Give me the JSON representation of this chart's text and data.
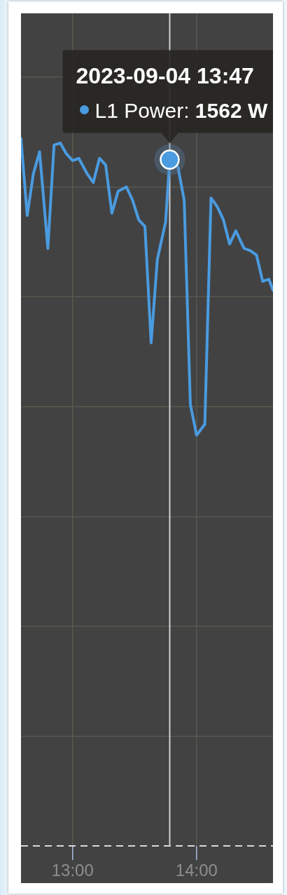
{
  "chart_data": {
    "type": "line",
    "x": [
      "2023-09-04T12:35",
      "2023-09-04T12:38",
      "2023-09-04T12:41",
      "2023-09-04T12:44",
      "2023-09-04T12:48",
      "2023-09-04T12:51",
      "2023-09-04T12:54",
      "2023-09-04T12:57",
      "2023-09-04T13:00",
      "2023-09-04T13:03",
      "2023-09-04T13:07",
      "2023-09-04T13:10",
      "2023-09-04T13:13",
      "2023-09-04T13:16",
      "2023-09-04T13:19",
      "2023-09-04T13:22",
      "2023-09-04T13:26",
      "2023-09-04T13:29",
      "2023-09-04T13:32",
      "2023-09-04T13:35",
      "2023-09-04T13:38",
      "2023-09-04T13:41",
      "2023-09-04T13:45",
      "2023-09-04T13:47",
      "2023-09-04T13:51",
      "2023-09-04T13:54",
      "2023-09-04T13:57",
      "2023-09-04T14:00",
      "2023-09-04T14:04",
      "2023-09-04T14:07",
      "2023-09-04T14:10",
      "2023-09-04T14:13",
      "2023-09-04T14:16",
      "2023-09-04T14:19",
      "2023-09-04T14:23",
      "2023-09-04T14:26",
      "2023-09-04T14:29",
      "2023-09-04T14:32",
      "2023-09-04T14:35",
      "2023-09-04T14:37"
    ],
    "series": [
      {
        "name": "L1 Power:",
        "color": "#4a9be0",
        "values": [
          1610,
          1435,
          1530,
          1580,
          1360,
          1595,
          1600,
          1575,
          1560,
          1565,
          1530,
          1510,
          1565,
          1550,
          1440,
          1490,
          1500,
          1470,
          1425,
          1410,
          1145,
          1335,
          1420,
          1562,
          1545,
          1470,
          1005,
          935,
          960,
          1475,
          1455,
          1425,
          1370,
          1400,
          1360,
          1355,
          1345,
          1285,
          1290,
          1265
        ],
        "value_labels": [
          null,
          null,
          null,
          null,
          null,
          null,
          null,
          null,
          null,
          null,
          null,
          null,
          null,
          null,
          null,
          null,
          null,
          null,
          null,
          null,
          null,
          null,
          null,
          "1562 W",
          null,
          null,
          null,
          null,
          null,
          null,
          null,
          null,
          null,
          null,
          null,
          null,
          null,
          null,
          null,
          null
        ]
      }
    ],
    "xlim": [
      "2023-09-04T12:35",
      "2023-09-04T14:37"
    ],
    "xticks": [
      {
        "value": "2023-09-04T13:00",
        "label": "13:00"
      },
      {
        "value": "2023-09-04T14:00",
        "label": "14:00"
      }
    ],
    "ylim": [
      0,
      1895
    ],
    "yticks": [
      {
        "value": 0,
        "label": null
      },
      {
        "value": 250,
        "label": null
      },
      {
        "value": 500,
        "label": null
      },
      {
        "value": 750,
        "label": null
      },
      {
        "value": 1000,
        "label": null
      },
      {
        "value": 1250,
        "label": null
      },
      {
        "value": 1500,
        "label": null
      },
      {
        "value": 1750,
        "label": null
      }
    ],
    "ref_lines": [
      {
        "axis": "x",
        "value": "2023-09-04T13:47",
        "color": "#cfcfcf"
      }
    ],
    "annotations": [
      "2023-09-04 13:47"
    ],
    "grid": true,
    "tick_labels": "x",
    "marker": "none",
    "line_style": "solid"
  }
}
